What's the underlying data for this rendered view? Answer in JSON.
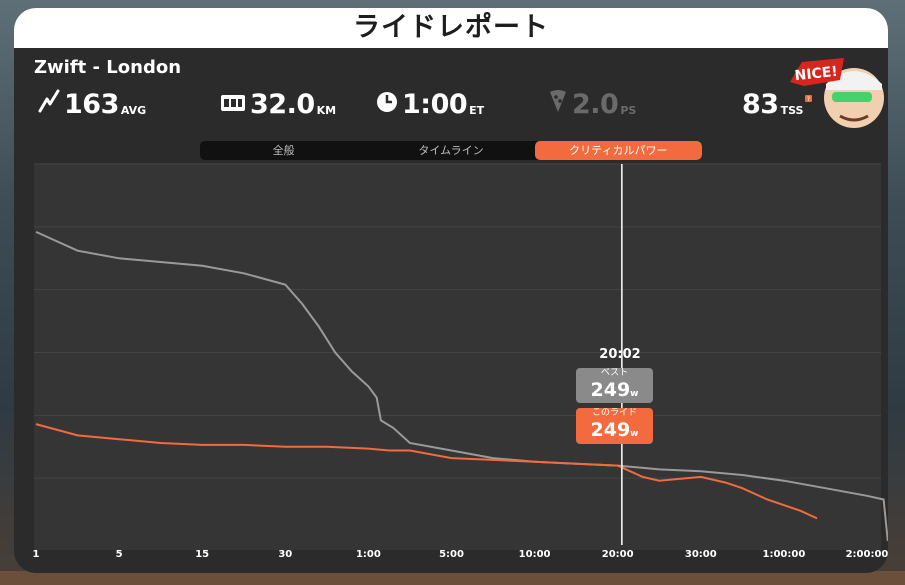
{
  "panel": {
    "title": "ライドレポート"
  },
  "ride": {
    "route": "Zwift - London",
    "avg_power": {
      "value": "163",
      "unit": "AVG"
    },
    "distance": {
      "value": "32.0",
      "unit": "KM"
    },
    "elapsed": {
      "value": "1:00",
      "unit": "ET"
    },
    "pizza": {
      "value": "2.0",
      "unit": "PS"
    },
    "tss": {
      "value": "83",
      "unit": "TSS"
    }
  },
  "badge": {
    "text": "NICE!"
  },
  "tabs": [
    {
      "label": "全般",
      "active": false
    },
    {
      "label": "タイムライン",
      "active": false
    },
    {
      "label": "クリティカルパワー",
      "active": true
    }
  ],
  "tooltip": {
    "time": "20:02",
    "best_label": "ベスト",
    "best_value": "249",
    "ride_label": "このライド",
    "ride_value": "249",
    "unit": "w"
  },
  "chart_data": {
    "type": "line",
    "x_ticks": [
      "1",
      "5",
      "15",
      "30",
      "1:00",
      "5:00",
      "10:00",
      "20:00",
      "30:00",
      "1:00:00",
      "2:00:00"
    ],
    "series": [
      {
        "color": "#9a9a9a",
        "values": [
          [
            0,
            0.82
          ],
          [
            0.5,
            0.77
          ],
          [
            1,
            0.75
          ],
          [
            1.5,
            0.74
          ],
          [
            2,
            0.73
          ],
          [
            2.5,
            0.71
          ],
          [
            3,
            0.68
          ],
          [
            3.2,
            0.63
          ],
          [
            3.4,
            0.57
          ],
          [
            3.6,
            0.5
          ],
          [
            3.8,
            0.45
          ],
          [
            4,
            0.41
          ],
          [
            4.1,
            0.38
          ],
          [
            4.15,
            0.32
          ],
          [
            4.3,
            0.3
          ],
          [
            4.5,
            0.26
          ],
          [
            5,
            0.24
          ],
          [
            5.5,
            0.22
          ],
          [
            6,
            0.21
          ],
          [
            6.5,
            0.205
          ],
          [
            7,
            0.2
          ],
          [
            7.5,
            0.19
          ],
          [
            8,
            0.185
          ],
          [
            8.5,
            0.175
          ],
          [
            9,
            0.16
          ],
          [
            9.5,
            0.14
          ],
          [
            10,
            0.12
          ],
          [
            10.2,
            0.11
          ],
          [
            10.25,
            0.0
          ]
        ]
      },
      {
        "color": "#f26a3d",
        "values": [
          [
            0,
            0.31
          ],
          [
            0.5,
            0.28
          ],
          [
            1,
            0.27
          ],
          [
            1.5,
            0.26
          ],
          [
            2,
            0.255
          ],
          [
            2.5,
            0.255
          ],
          [
            3,
            0.25
          ],
          [
            3.5,
            0.25
          ],
          [
            4,
            0.245
          ],
          [
            4.25,
            0.24
          ],
          [
            4.5,
            0.24
          ],
          [
            5,
            0.22
          ],
          [
            5.5,
            0.215
          ],
          [
            6,
            0.21
          ],
          [
            6.5,
            0.205
          ],
          [
            7,
            0.2
          ],
          [
            7.3,
            0.17
          ],
          [
            7.5,
            0.16
          ],
          [
            8,
            0.17
          ],
          [
            8.3,
            0.155
          ],
          [
            8.5,
            0.14
          ],
          [
            8.8,
            0.11
          ],
          [
            9.2,
            0.08
          ],
          [
            9.4,
            0.06
          ]
        ]
      }
    ],
    "marker": {
      "x": 7.05,
      "label": "20:02"
    },
    "grid": true
  },
  "colors": {
    "accent": "#f26a3d",
    "best": "#8a8a8a"
  }
}
